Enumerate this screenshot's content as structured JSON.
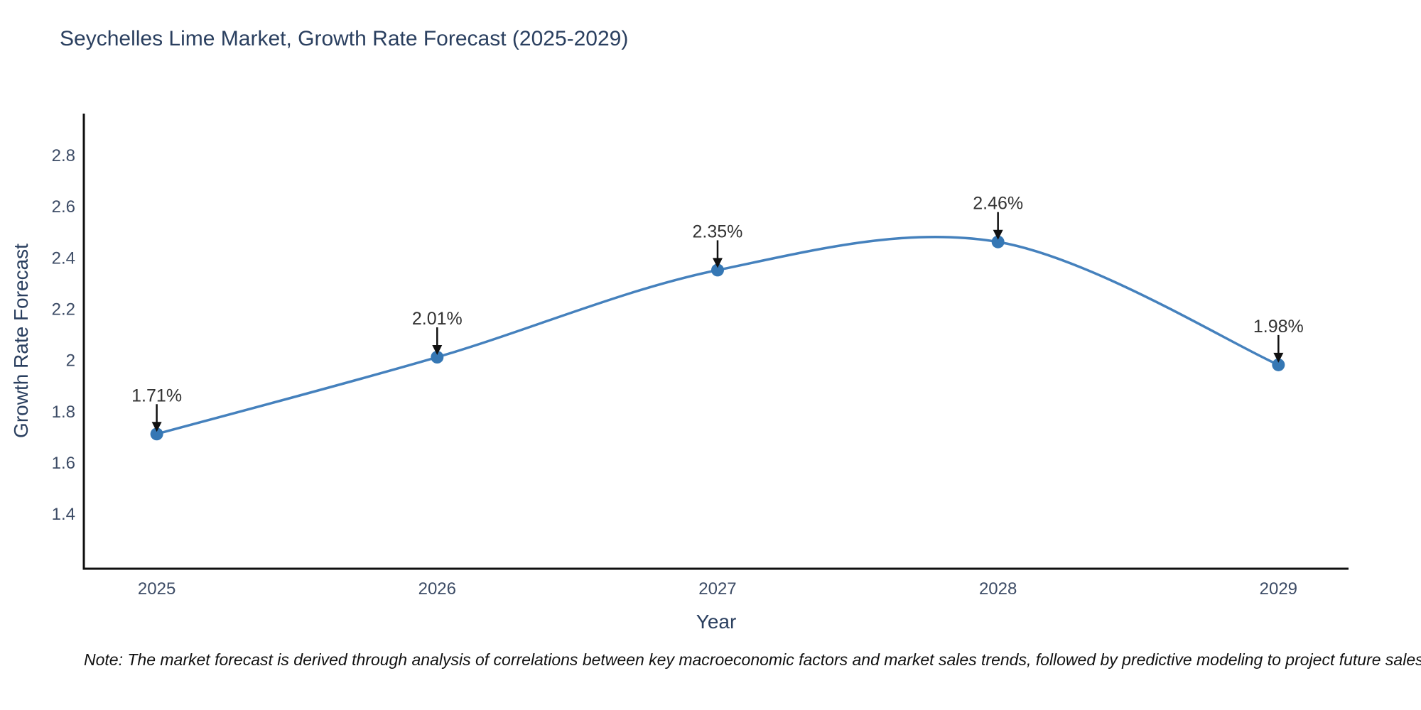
{
  "figure": {
    "title": "Seychelles Lime Market, Growth Rate Forecast (2025-2029)",
    "note": "Note: The market forecast is derived through analysis of correlations between key macroeconomic factors and market sales trends, followed by predictive modeling to project future sales"
  },
  "colors": {
    "background": "#ffffff",
    "title_text": "#2a3f5f",
    "axis_title_text": "#2a3f5f",
    "tick_text": "#3d4c66",
    "axis_line": "#0f0f0f",
    "series_line": "#4581bd",
    "marker_fill": "#3577b4",
    "annotation_text": "#333333",
    "annotation_arrow": "#111111"
  },
  "chart_data": {
    "type": "line",
    "title": "Seychelles Lime Market, Growth Rate Forecast (2025-2029)",
    "xlabel": "Year",
    "ylabel": "Growth Rate Forecast",
    "x": [
      2025,
      2026,
      2027,
      2028,
      2029
    ],
    "series": [
      {
        "name": "Growth Rate Forecast",
        "values": [
          1.71,
          2.01,
          2.35,
          2.46,
          1.98
        ]
      }
    ],
    "point_labels": [
      "1.71%",
      "2.01%",
      "2.35%",
      "2.46%",
      "1.98%"
    ],
    "xticks": [
      2025,
      2026,
      2027,
      2028,
      2029
    ],
    "yticks": [
      1.4,
      1.6,
      1.8,
      2,
      2.2,
      2.4,
      2.6,
      2.8
    ],
    "xlim": [
      2024.74,
      2029.25
    ],
    "ylim": [
      1.184,
      2.961
    ],
    "grid": false,
    "legend": "none",
    "line_shape": "spline",
    "markers": true,
    "annotations": "point-value-labels-with-down-arrows"
  }
}
